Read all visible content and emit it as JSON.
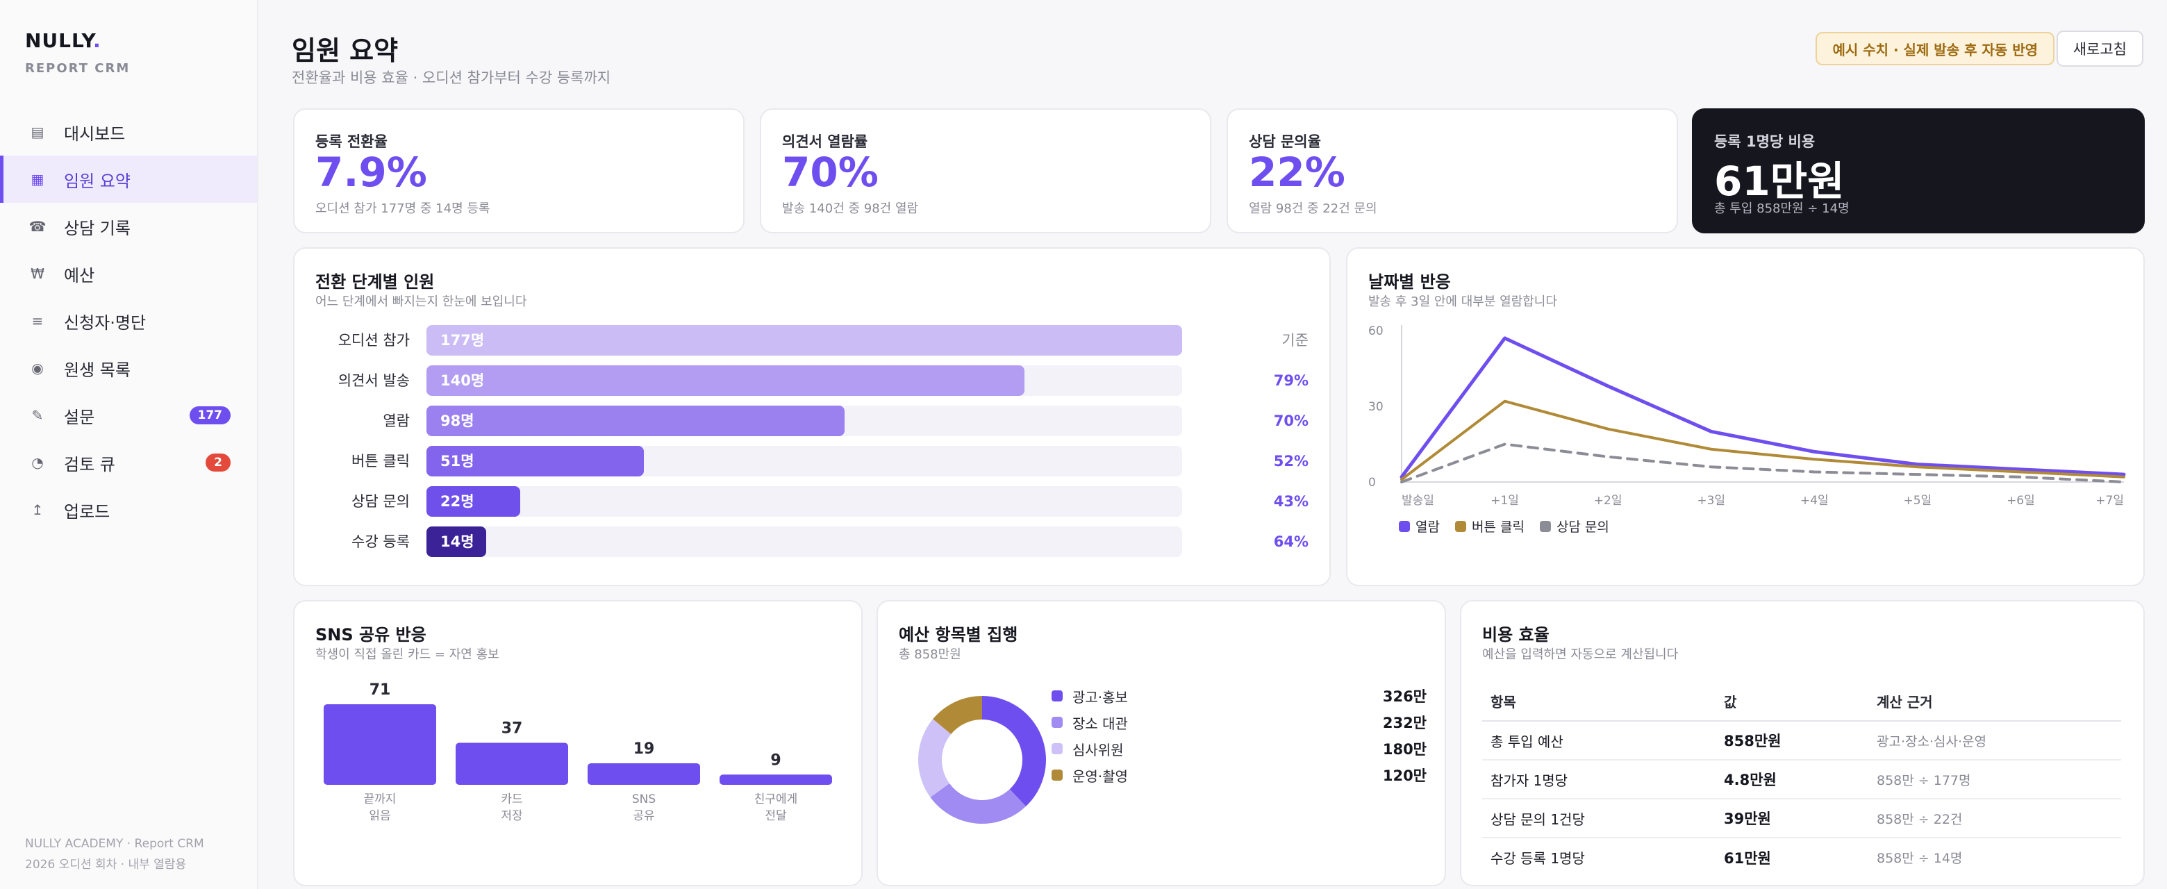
{
  "sidebar": {
    "brand": "NULLY",
    "brand_dot": ".",
    "brand_sub": "REPORT CRM",
    "items": [
      {
        "label": "대시보드",
        "icon": "dashboard-icon",
        "glyph": "▤"
      },
      {
        "label": "임원 요약",
        "icon": "summary-icon",
        "glyph": "▦",
        "active": true
      },
      {
        "label": "상담 기록",
        "icon": "phone-icon",
        "glyph": "☎"
      },
      {
        "label": "예산",
        "icon": "won-icon",
        "glyph": "₩"
      },
      {
        "label": "신청자·명단",
        "icon": "list-icon",
        "glyph": "≡"
      },
      {
        "label": "원생 목록",
        "icon": "target-icon",
        "glyph": "◉"
      },
      {
        "label": "설문",
        "icon": "pen-icon",
        "glyph": "✎",
        "badge": "177"
      },
      {
        "label": "검토 큐",
        "icon": "clock-icon",
        "glyph": "◔",
        "badge": "2"
      },
      {
        "label": "업로드",
        "icon": "upload-icon",
        "glyph": "↥"
      }
    ],
    "footer_line1": "NULLY ACADEMY · Report CRM",
    "footer_line2": "2026 오디션 회차 · 내부 열람용"
  },
  "header": {
    "title": "임원 요약",
    "subtitle": "전환율과 비용 효율 · 오디션 참가부터 수강 등록까지",
    "notice": "예시 수치 · 실제 발송 후 자동 반영",
    "refresh_label": "새로고침"
  },
  "kpis": [
    {
      "label": "등록 전환율",
      "value": "7.9%",
      "note": "오디션 참가 177명 중 14명 등록"
    },
    {
      "label": "의견서 열람률",
      "value": "70%",
      "note": "발송 140건 중 98건 열람"
    },
    {
      "label": "상담 문의율",
      "value": "22%",
      "note": "열람 98건 중 22건 문의"
    },
    {
      "label": "등록 1명당 비용",
      "value": "61만원",
      "note": "총 투입 858만원 ÷ 14명"
    }
  ],
  "funnel": {
    "title": "전환 단계별 인원",
    "subtitle": "어느 단계에서 빠지는지 한눈에 보입니다",
    "steps": [
      {
        "label": "오디션 참가",
        "count": 177,
        "bar_label": "177명",
        "rate": "기준",
        "color": "#cbbcf6"
      },
      {
        "label": "의견서 발송",
        "count": 140,
        "bar_label": "140명",
        "rate": "79%",
        "color": "#b29df3"
      },
      {
        "label": "열람",
        "count": 98,
        "bar_label": "98명",
        "rate": "70%",
        "color": "#9b80ef"
      },
      {
        "label": "버튼 클릭",
        "count": 51,
        "bar_label": "51명",
        "rate": "52%",
        "color": "#8364ec"
      },
      {
        "label": "상담 문의",
        "count": 22,
        "bar_label": "22명",
        "rate": "43%",
        "color": "#7050ea"
      },
      {
        "label": "수강 등록",
        "count": 14,
        "bar_label": "14명",
        "rate": "64%",
        "color": "#3b2296"
      }
    ]
  },
  "daily": {
    "title": "날짜별 반응",
    "subtitle": "발송 후 3일 안에 대부분 열람합니다"
  },
  "sns": {
    "title": "SNS 공유 반응",
    "subtitle": "학생이 직접 올린 카드 = 자연 홍보"
  },
  "budget": {
    "title": "예산 항목별 집행",
    "subtitle": "총 858만원",
    "items": [
      {
        "label": "광고·홍보",
        "amount": "326만",
        "color": "#6f4ef0"
      },
      {
        "label": "장소 대관",
        "amount": "232만",
        "color": "#a08bf2"
      },
      {
        "label": "심사위원",
        "amount": "180만",
        "color": "#cdc1f7"
      },
      {
        "label": "운영·촬영",
        "amount": "120만",
        "color": "#b08a36"
      }
    ]
  },
  "efficiency": {
    "title": "비용 효율",
    "subtitle": "예산을 입력하면 자동으로 계산됩니다",
    "headers": [
      "항목",
      "값",
      "계산 근거"
    ],
    "rows": [
      {
        "item": "총 투입 예산",
        "value": "858만원",
        "basis": "광고·장소·심사·운영"
      },
      {
        "item": "참가자 1명당",
        "value": "4.8만원",
        "basis": "858만 ÷ 177명"
      },
      {
        "item": "상담 문의 1건당",
        "value": "39만원",
        "basis": "858만 ÷ 22건"
      },
      {
        "item": "수강 등록 1명당",
        "value": "61만원",
        "basis": "858만 ÷ 14명"
      }
    ]
  },
  "chart_data": [
    {
      "type": "line",
      "x": [
        "발송일",
        "+1일",
        "+2일",
        "+3일",
        "+4일",
        "+5일",
        "+6일",
        "+7일"
      ],
      "ylim": [
        0,
        60
      ],
      "yticks": [
        0,
        30,
        60
      ],
      "series": [
        {
          "name": "열람",
          "values": [
            2,
            57,
            38,
            20,
            12,
            7,
            5,
            3
          ],
          "color": "#6f4ef0",
          "dash": false
        },
        {
          "name": "버튼 클릭",
          "values": [
            1,
            32,
            21,
            13,
            9,
            6,
            4,
            2
          ],
          "color": "#b08a36",
          "dash": false
        },
        {
          "name": "상담 문의",
          "values": [
            0,
            15,
            10,
            6,
            4,
            3,
            2,
            0
          ],
          "color": "#8c8c96",
          "dash": true
        }
      ]
    },
    {
      "type": "bar",
      "categories": [
        [
          "끝까지",
          "읽음"
        ],
        [
          "카드",
          "저장"
        ],
        [
          "SNS",
          "공유"
        ],
        [
          "친구에게",
          "전달"
        ]
      ],
      "values": [
        71,
        37,
        19,
        9
      ],
      "color": "#6f4ef0"
    },
    {
      "type": "pie",
      "labels": [
        "광고·홍보",
        "장소 대관",
        "심사위원",
        "운영·촬영"
      ],
      "values": [
        326,
        232,
        180,
        120
      ],
      "colors": [
        "#6f4ef0",
        "#a08bf2",
        "#cdc1f7",
        "#b08a36"
      ],
      "donut": true
    }
  ]
}
